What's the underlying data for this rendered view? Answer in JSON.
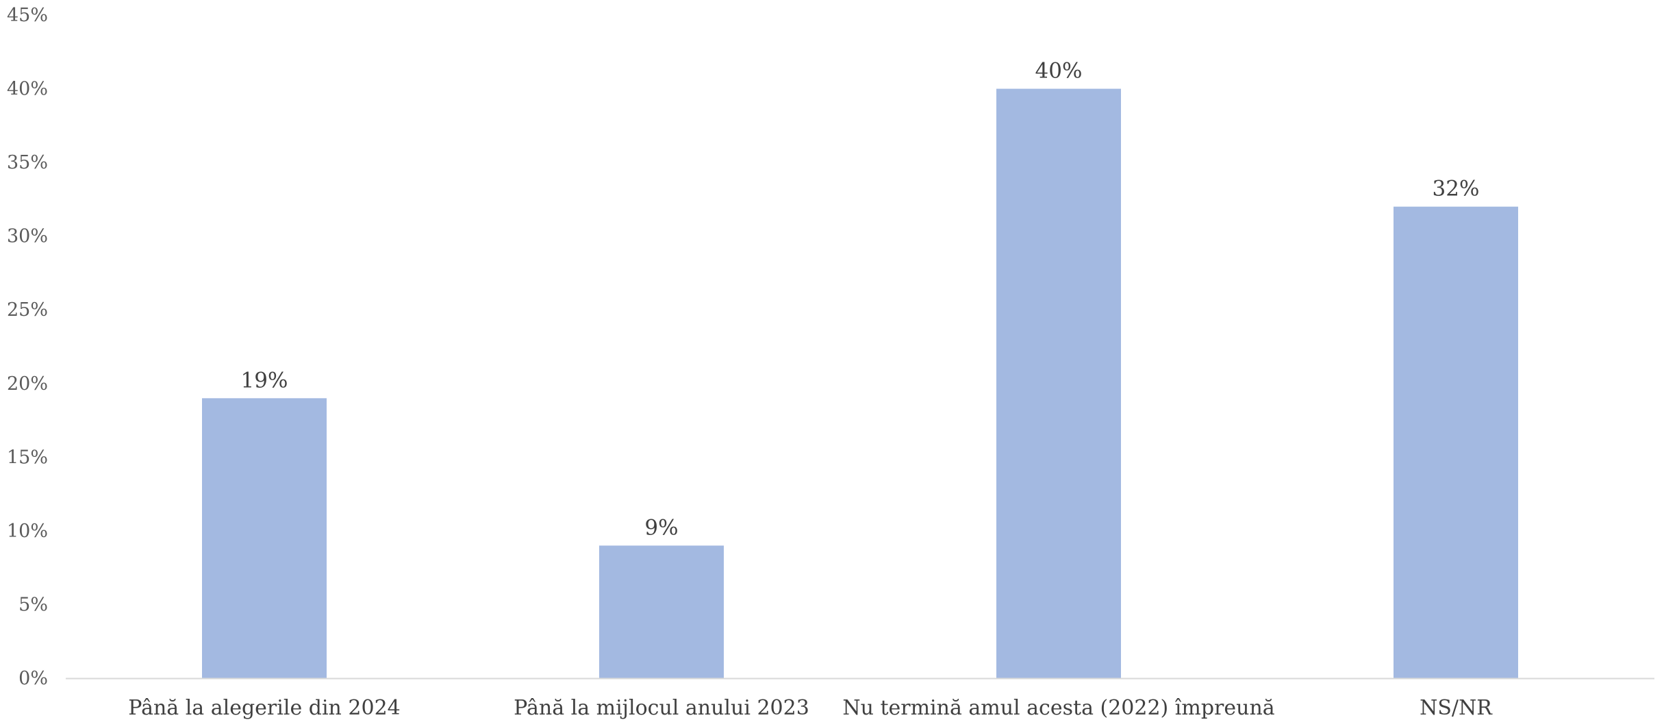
{
  "chart_data": {
    "type": "bar",
    "categories": [
      "Până la alegerile din 2024",
      "Până la mijlocul anului 2023",
      "Nu termină amul acesta (2022) împreună",
      "NS/NR"
    ],
    "values": [
      19,
      9,
      40,
      32
    ],
    "data_labels": [
      "19%",
      "9%",
      "40%",
      "32%"
    ],
    "ylim": [
      0,
      45
    ],
    "yticks": [
      0,
      5,
      10,
      15,
      20,
      25,
      30,
      35,
      40,
      45
    ],
    "ytick_labels": [
      "0%",
      "5%",
      "10%",
      "15%",
      "20%",
      "25%",
      "30%",
      "35%",
      "40%",
      "45%"
    ],
    "title": "",
    "xlabel": "",
    "ylabel": "",
    "grid": false,
    "legend": "none",
    "colors": {
      "bar": "#a3b9e1",
      "axis": "#d9d9d9",
      "tick_text": "#595959",
      "label_text": "#404040"
    }
  }
}
